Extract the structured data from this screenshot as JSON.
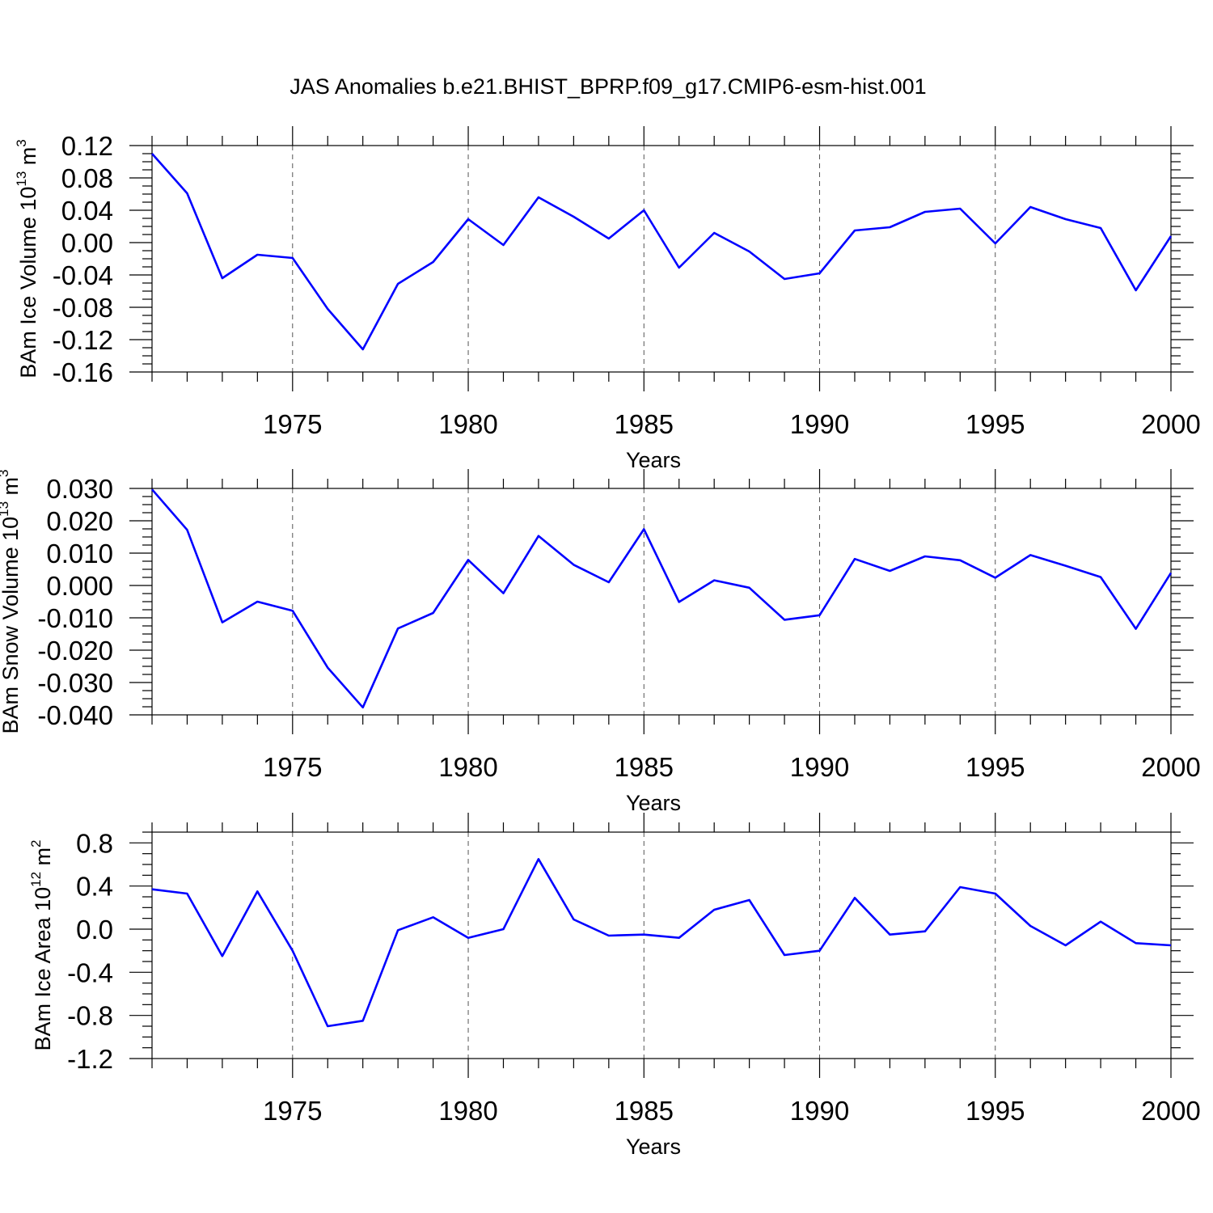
{
  "title": "JAS Anomalies b.e21.BHIST_BPRP.f09_g17.CMIP6-esm-hist.001",
  "line_color": "#0000ff",
  "chart_data": [
    {
      "type": "line",
      "id": "ice-volume",
      "ylabel_main": "BAm Ice Volume 10",
      "ylabel_exp": "13",
      "ylabel_unit": " m",
      "ylabel_unit_exp": "3",
      "xlabel": "Years",
      "xlim": [
        1971,
        2000
      ],
      "ylim": [
        -0.16,
        0.12
      ],
      "yticks": [
        -0.16,
        -0.12,
        -0.08,
        -0.04,
        0.0,
        0.04,
        0.08,
        0.12
      ],
      "ytick_labels": [
        "-0.16",
        "-0.12",
        "-0.08",
        "-0.04",
        "0.00",
        "0.04",
        "0.08",
        "0.12"
      ],
      "xticks": [
        1975,
        1980,
        1985,
        1990,
        1995,
        2000
      ],
      "xtick_labels": [
        "1975",
        "1980",
        "1985",
        "1990",
        "1995",
        "2000"
      ],
      "x": [
        1971,
        1972,
        1973,
        1974,
        1975,
        1976,
        1977,
        1978,
        1979,
        1980,
        1981,
        1982,
        1983,
        1984,
        1985,
        1986,
        1987,
        1988,
        1989,
        1990,
        1991,
        1992,
        1993,
        1994,
        1995,
        1996,
        1997,
        1998,
        1999,
        2000
      ],
      "values": [
        0.11,
        0.061,
        -0.044,
        -0.015,
        -0.019,
        -0.082,
        -0.132,
        -0.051,
        -0.024,
        0.029,
        -0.003,
        0.056,
        0.032,
        0.005,
        0.04,
        -0.031,
        0.012,
        -0.011,
        -0.045,
        -0.038,
        0.015,
        0.019,
        0.038,
        0.042,
        -0.001,
        0.044,
        0.029,
        0.018,
        -0.059,
        0.008
      ]
    },
    {
      "type": "line",
      "id": "snow-volume",
      "ylabel_main": "BAm Snow Volume 10",
      "ylabel_exp": "13",
      "ylabel_unit": " m",
      "ylabel_unit_exp": "3",
      "xlabel": "Years",
      "xlim": [
        1971,
        2000
      ],
      "ylim": [
        -0.04,
        0.03
      ],
      "yticks": [
        -0.04,
        -0.03,
        -0.02,
        -0.01,
        0.0,
        0.01,
        0.02,
        0.03
      ],
      "ytick_labels": [
        "-0.040",
        "-0.030",
        "-0.020",
        "-0.010",
        "0.000",
        "0.010",
        "0.020",
        "0.030"
      ],
      "xticks": [
        1975,
        1980,
        1985,
        1990,
        1995,
        2000
      ],
      "xtick_labels": [
        "1975",
        "1980",
        "1985",
        "1990",
        "1995",
        "2000"
      ],
      "x": [
        1971,
        1972,
        1973,
        1974,
        1975,
        1976,
        1977,
        1978,
        1979,
        1980,
        1981,
        1982,
        1983,
        1984,
        1985,
        1986,
        1987,
        1988,
        1989,
        1990,
        1991,
        1992,
        1993,
        1994,
        1995,
        1996,
        1997,
        1998,
        1999,
        2000
      ],
      "values": [
        0.0297,
        0.0172,
        -0.0114,
        -0.005,
        -0.0078,
        -0.0254,
        -0.0377,
        -0.0133,
        -0.0085,
        0.0079,
        -0.0024,
        0.0153,
        0.0064,
        0.001,
        0.0174,
        -0.0051,
        0.0016,
        -0.0007,
        -0.0106,
        -0.0092,
        0.0082,
        0.0045,
        0.009,
        0.0078,
        0.0024,
        0.0094,
        0.0061,
        0.0026,
        -0.0134,
        0.0039
      ]
    },
    {
      "type": "line",
      "id": "ice-area",
      "ylabel_main": "BAm Ice Area 10",
      "ylabel_exp": "12",
      "ylabel_unit": " m",
      "ylabel_unit_exp": "2",
      "xlabel": "Years",
      "xlim": [
        1971,
        2000
      ],
      "ylim": [
        -1.2,
        0.9
      ],
      "yticks": [
        -1.2,
        -0.8,
        -0.4,
        0.0,
        0.4,
        0.8
      ],
      "ytick_labels": [
        "-1.2",
        "-0.8",
        "-0.4",
        "0.0",
        "0.4",
        "0.8"
      ],
      "xticks": [
        1975,
        1980,
        1985,
        1990,
        1995,
        2000
      ],
      "xtick_labels": [
        "1975",
        "1980",
        "1985",
        "1990",
        "1995",
        "2000"
      ],
      "x": [
        1971,
        1972,
        1973,
        1974,
        1975,
        1976,
        1977,
        1978,
        1979,
        1980,
        1981,
        1982,
        1983,
        1984,
        1985,
        1986,
        1987,
        1988,
        1989,
        1990,
        1991,
        1992,
        1993,
        1994,
        1995,
        1996,
        1997,
        1998,
        1999,
        2000
      ],
      "values": [
        0.37,
        0.33,
        -0.25,
        0.35,
        -0.2,
        -0.9,
        -0.85,
        -0.01,
        0.11,
        -0.08,
        0.0,
        0.65,
        0.09,
        -0.06,
        -0.05,
        -0.08,
        0.18,
        0.27,
        -0.24,
        -0.2,
        0.29,
        -0.05,
        -0.02,
        0.39,
        0.33,
        0.03,
        -0.15,
        0.07,
        -0.13,
        -0.15
      ]
    }
  ]
}
